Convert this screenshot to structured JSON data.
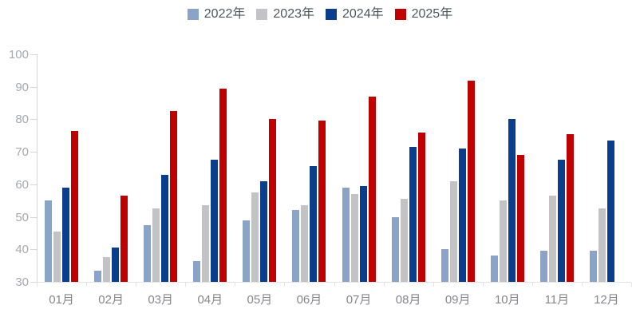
{
  "chart_data": {
    "type": "bar",
    "title": "",
    "xlabel": "",
    "ylabel": "",
    "categories": [
      "01月",
      "02月",
      "03月",
      "04月",
      "05月",
      "06月",
      "07月",
      "08月",
      "09月",
      "10月",
      "11月",
      "12月"
    ],
    "series": [
      {
        "name": "2022年",
        "color": "#8ca3c8",
        "values": [
          55,
          33.5,
          47.5,
          36.5,
          49,
          52,
          59,
          50,
          40,
          38,
          39.5,
          39.5
        ]
      },
      {
        "name": "2023年",
        "color": "#c3c3c5",
        "values": [
          45.5,
          37.5,
          52.5,
          53.5,
          57.5,
          53.5,
          57,
          55.5,
          61,
          55,
          56.5,
          52.5
        ]
      },
      {
        "name": "2024年",
        "color": "#0b3d8d",
        "values": [
          59,
          40.5,
          63,
          67.5,
          61,
          65.5,
          59.5,
          71.5,
          71,
          80,
          67.5,
          73.5
        ]
      },
      {
        "name": "2025年",
        "color": "#c00000",
        "values": [
          76.5,
          56.5,
          82.5,
          89.5,
          80,
          79.5,
          87,
          76,
          92,
          69,
          75.5,
          null
        ]
      }
    ],
    "ylim": [
      30,
      100
    ],
    "yticks": [
      30,
      40,
      50,
      60,
      70,
      80,
      90,
      100
    ],
    "grid": false,
    "legend_position": "top-center",
    "colors": {
      "axis_line": "#d6d6d6",
      "baseline": "#e4e4e4",
      "y_tick_label": "#a6a9ad",
      "x_tick_label": "#85878a",
      "legend_text": "#50555c"
    }
  }
}
